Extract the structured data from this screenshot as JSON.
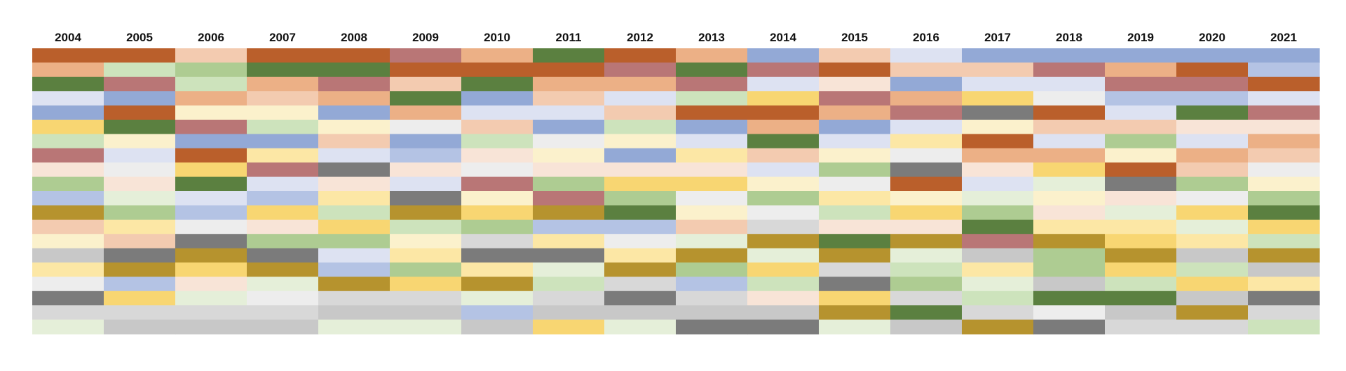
{
  "chart_data": {
    "type": "heatmap",
    "title": "",
    "xlabel": "",
    "ylabel": "",
    "years": [
      "2004",
      "2005",
      "2006",
      "2007",
      "2008",
      "2009",
      "2010",
      "2011",
      "2012",
      "2013",
      "2014",
      "2015",
      "2016",
      "2017",
      "2018",
      "2019",
      "2020",
      "2021"
    ],
    "rows_count": 20,
    "palette": {
      "RT": "#ba5f2b",
      "RM": "#ecb086",
      "RL": "#f3cbb0",
      "RP": "#f8e4d7",
      "M": "#b97676",
      "BD": "#93a9d6",
      "BM": "#b4c3e4",
      "BL": "#dde2f2",
      "GD": "#5b8040",
      "GM": "#aecc92",
      "GL": "#cde3bc",
      "GP": "#e5efd9",
      "YL": "#fbf1cc",
      "YM": "#fce7a5",
      "YD": "#f8d672",
      "O": "#b6932e",
      "K": "#7b7b7b",
      "KL": "#c8c8c8",
      "KM": "#d8d8d8",
      "KP": "#ededed"
    },
    "columns": [
      [
        "RT",
        "RM",
        "GD",
        "BL",
        "BD",
        "YD",
        "GL",
        "M",
        "RP",
        "GM",
        "BM",
        "O",
        "RL",
        "YL",
        "KL",
        "YM",
        "KP",
        "K",
        "KM",
        "GP"
      ],
      [
        "RT",
        "GL",
        "M",
        "BD",
        "RT",
        "GD",
        "YL",
        "BL",
        "KP",
        "RP",
        "GP",
        "GM",
        "YM",
        "RL",
        "K",
        "O",
        "BM",
        "YD",
        "KM",
        "KL"
      ],
      [
        "RL",
        "GM",
        "GL",
        "RM",
        "YL",
        "M",
        "BD",
        "RT",
        "YD",
        "GD",
        "BL",
        "BM",
        "KP",
        "K",
        "O",
        "YD",
        "RP",
        "GP",
        "KM",
        "KL"
      ],
      [
        "RT",
        "GD",
        "RM",
        "RL",
        "YL",
        "GL",
        "BD",
        "YM",
        "M",
        "BL",
        "BM",
        "YD",
        "RP",
        "GM",
        "K",
        "O",
        "GP",
        "KP",
        "KM",
        "KL"
      ],
      [
        "RT",
        "GD",
        "M",
        "RM",
        "BD",
        "YL",
        "RL",
        "BL",
        "K",
        "RP",
        "YM",
        "GL",
        "YD",
        "GM",
        "BL",
        "BM",
        "O",
        "KM",
        "KL",
        "GP"
      ],
      [
        "M",
        "RT",
        "RL",
        "GD",
        "RM",
        "KP",
        "BD",
        "BM",
        "RP",
        "BL",
        "K",
        "O",
        "GL",
        "YL",
        "YM",
        "GM",
        "YD",
        "KM",
        "KL",
        "GP"
      ],
      [
        "RM",
        "RT",
        "GD",
        "BD",
        "BL",
        "RL",
        "GL",
        "RP",
        "KP",
        "M",
        "YL",
        "YD",
        "GM",
        "KM",
        "K",
        "YM",
        "O",
        "GP",
        "BM",
        "KL"
      ],
      [
        "GD",
        "RT",
        "RM",
        "RL",
        "BL",
        "BD",
        "KP",
        "YL",
        "RP",
        "GM",
        "M",
        "O",
        "BM",
        "YM",
        "K",
        "GP",
        "GL",
        "KM",
        "KL",
        "YD"
      ],
      [
        "RT",
        "M",
        "RM",
        "BL",
        "RL",
        "GL",
        "YL",
        "BD",
        "RP",
        "YD",
        "GM",
        "GD",
        "BM",
        "KP",
        "YM",
        "O",
        "KM",
        "K",
        "KL",
        "GP"
      ],
      [
        "RM",
        "GD",
        "M",
        "GL",
        "RT",
        "BD",
        "BL",
        "YM",
        "RP",
        "YD",
        "KP",
        "YL",
        "RL",
        "GP",
        "O",
        "GM",
        "BM",
        "KM",
        "KL",
        "K"
      ],
      [
        "BD",
        "M",
        "BL",
        "YD",
        "RT",
        "RM",
        "GD",
        "RL",
        "BL",
        "YL",
        "GM",
        "KP",
        "KM",
        "O",
        "GP",
        "YD",
        "GL",
        "RP",
        "KL",
        "K"
      ],
      [
        "RL",
        "RT",
        "RP",
        "M",
        "RM",
        "BD",
        "BL",
        "YL",
        "GM",
        "KP",
        "YM",
        "GL",
        "RP",
        "GD",
        "O",
        "KM",
        "K",
        "YD",
        "O",
        "GP"
      ],
      [
        "BL",
        "RL",
        "BD",
        "RM",
        "M",
        "BL",
        "YM",
        "KP",
        "K",
        "RT",
        "YL",
        "YD",
        "RP",
        "O",
        "GP",
        "GL",
        "GM",
        "KM",
        "GD",
        "KL"
      ],
      [
        "BD",
        "RL",
        "BL",
        "YD",
        "K",
        "YL",
        "RT",
        "RM",
        "RP",
        "BL",
        "GP",
        "GM",
        "GD",
        "M",
        "KL",
        "YM",
        "GP",
        "GL",
        "KM",
        "O"
      ],
      [
        "BD",
        "M",
        "BL",
        "KP",
        "RT",
        "RL",
        "BL",
        "RM",
        "YD",
        "GP",
        "YL",
        "RP",
        "YM",
        "O",
        "GM",
        "GM",
        "KL",
        "GD",
        "KP",
        "K"
      ],
      [
        "BD",
        "RM",
        "M",
        "BM",
        "BL",
        "RL",
        "GM",
        "YL",
        "RT",
        "K",
        "RP",
        "GP",
        "YM",
        "YD",
        "O",
        "YD",
        "GL",
        "GD",
        "KL",
        "KM"
      ],
      [
        "BD",
        "RT",
        "M",
        "BM",
        "GD",
        "RP",
        "BL",
        "RM",
        "RL",
        "GM",
        "KP",
        "YD",
        "GP",
        "YM",
        "KL",
        "GL",
        "YD",
        "KL",
        "O",
        "KM"
      ],
      [
        "BD",
        "BM",
        "RT",
        "BL",
        "M",
        "RP",
        "RM",
        "RL",
        "KP",
        "YL",
        "GM",
        "GD",
        "YD",
        "GL",
        "O",
        "KL",
        "YM",
        "K",
        "KM",
        "GL"
      ]
    ]
  }
}
